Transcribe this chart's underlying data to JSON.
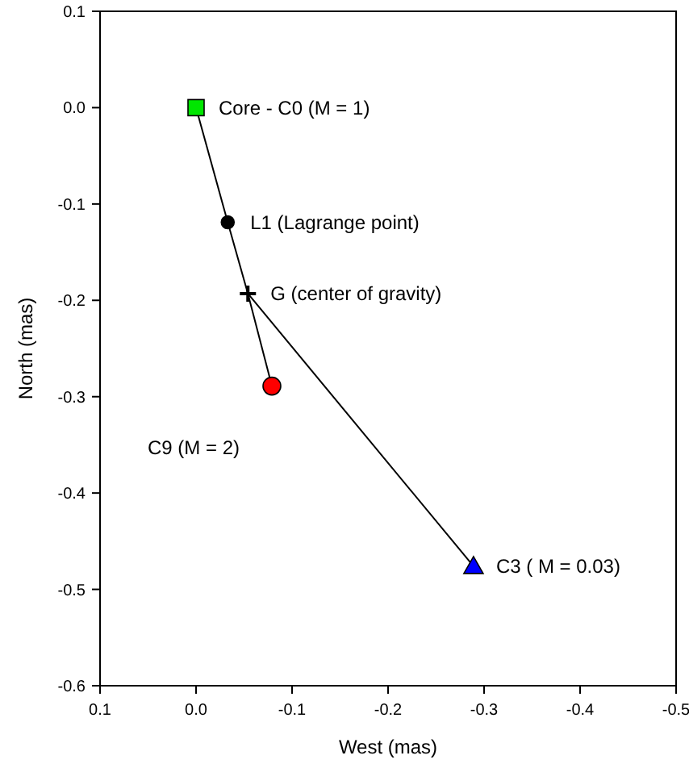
{
  "chart_data": {
    "type": "scatter",
    "xlabel": "West (mas)",
    "ylabel": "North (mas)",
    "xlim": [
      0.1,
      -0.5
    ],
    "xticks": [
      0.1,
      {
        "value": 0,
        "label": "0.0"
      },
      -0.1,
      -0.2,
      -0.3,
      -0.4,
      -0.5
    ],
    "ylim": [
      -0.6,
      0.1
    ],
    "yticks": [
      -0.6,
      -0.5,
      -0.4,
      -0.3,
      -0.2,
      -0.1,
      {
        "value": 0,
        "label": "0.0"
      },
      0.1
    ],
    "grid": false,
    "series": [
      {
        "type": "line",
        "color": "#000000",
        "marker": "none",
        "line_style": "solid",
        "x": [
          0,
          -0.033,
          -0.054,
          -0.079
        ],
        "values": [
          0,
          -0.119,
          -0.193,
          -0.289
        ]
      },
      {
        "type": "line",
        "color": "#000000",
        "marker": "none",
        "line_style": "solid",
        "x": [
          -0.054,
          -0.289
        ],
        "values": [
          -0.193,
          -0.476
        ]
      },
      {
        "name": "Core - C0 (M = 1)",
        "color": "#00e600",
        "marker": "square",
        "x": [
          0
        ],
        "values": [
          0
        ]
      },
      {
        "name": "L1 (Lagrange point)",
        "color": "#000000",
        "marker": "circle",
        "x": [
          -0.033
        ],
        "values": [
          -0.119
        ]
      },
      {
        "name": "G (center of gravity)",
        "color": "#000000",
        "marker": "cross",
        "x": [
          -0.054
        ],
        "values": [
          -0.193
        ]
      },
      {
        "name": "C9 (M = 2)",
        "color": "#ff0000",
        "marker": "circle",
        "x": [
          -0.079
        ],
        "values": [
          -0.289
        ]
      },
      {
        "name": "C3 ( M = 0.03)",
        "color": "#0000ff",
        "marker": "triangle",
        "x": [
          -0.289
        ],
        "values": [
          -0.476
        ]
      }
    ]
  }
}
